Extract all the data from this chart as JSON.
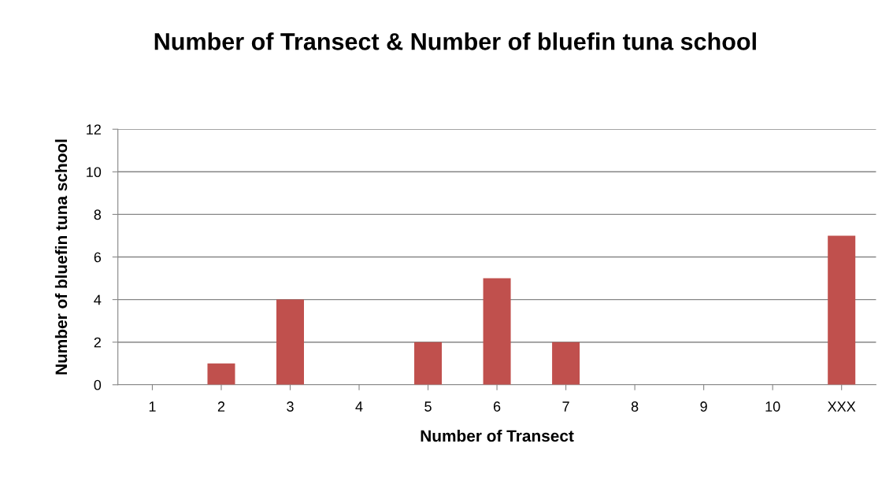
{
  "chart_data": {
    "type": "bar",
    "title": "Number of Transect & Number of bluefin tuna school",
    "xlabel": "Number of Transect",
    "ylabel": "Number of bluefin tuna school",
    "categories": [
      "1",
      "2",
      "3",
      "4",
      "5",
      "6",
      "7",
      "8",
      "9",
      "10",
      "XXX"
    ],
    "values": [
      0,
      1,
      4,
      0,
      2,
      5,
      2,
      0,
      0,
      0,
      7
    ],
    "color": "#c0504d",
    "ylim": [
      0,
      12
    ],
    "yticks": [
      0,
      2,
      4,
      6,
      8,
      10,
      12
    ],
    "grid": "y",
    "legend": false
  }
}
